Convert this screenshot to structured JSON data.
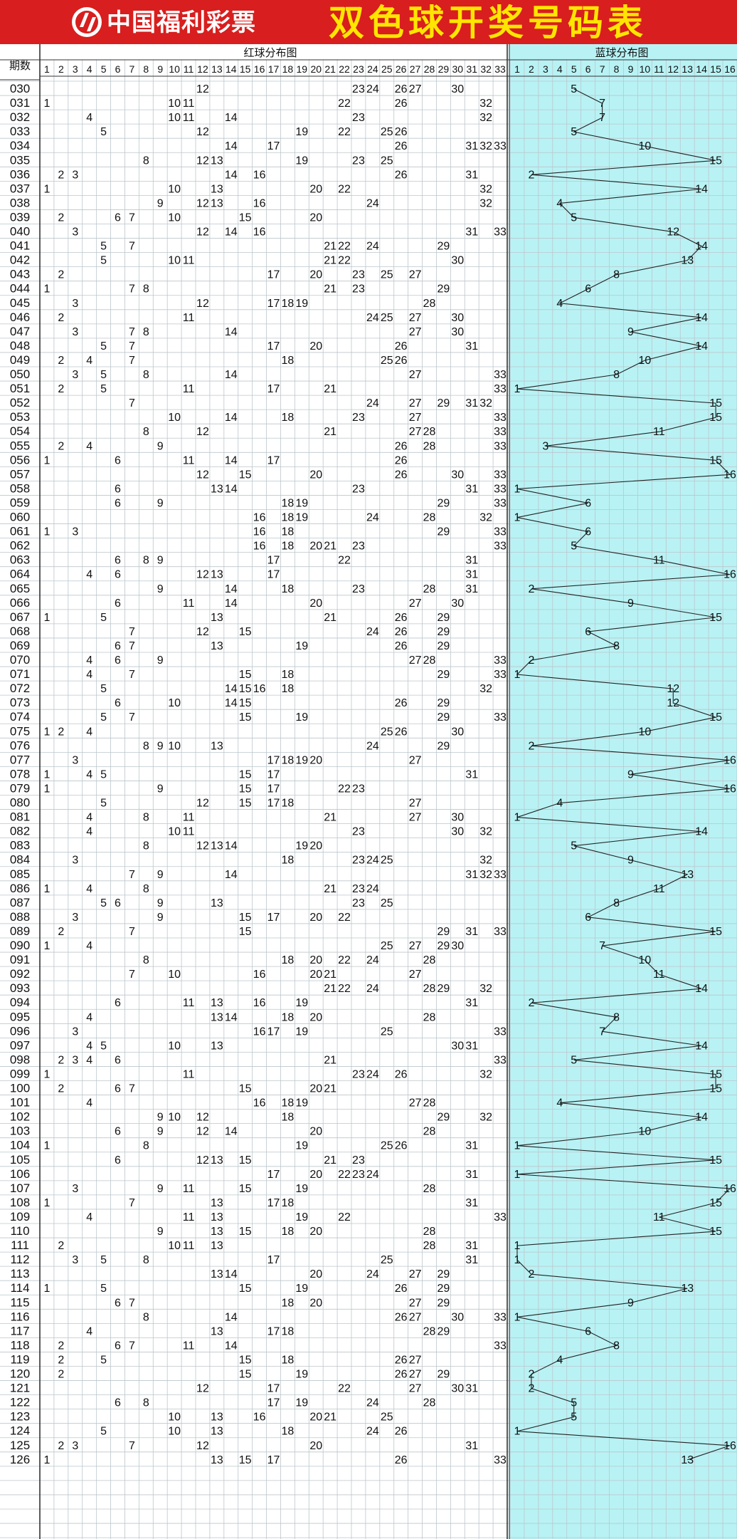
{
  "header": {
    "brand": "中国福利彩票",
    "title": "双色球开奖号码表",
    "logo_icon": "welfare-lottery-logo-icon"
  },
  "table": {
    "period_header": "期数",
    "red_section_title": "红球分布图",
    "blue_section_title": "蓝球分布图",
    "red_columns": [
      "1",
      "2",
      "3",
      "4",
      "5",
      "6",
      "7",
      "8",
      "9",
      "10",
      "11",
      "12",
      "13",
      "14",
      "15",
      "16",
      "17",
      "18",
      "19",
      "20",
      "21",
      "22",
      "23",
      "24",
      "25",
      "26",
      "27",
      "28",
      "29",
      "30",
      "31",
      "32",
      "33"
    ],
    "blue_columns": [
      "1",
      "2",
      "3",
      "4",
      "5",
      "6",
      "7",
      "8",
      "9",
      "10",
      "11",
      "12",
      "13",
      "14",
      "15",
      "16"
    ],
    "rows": [
      {
        "p": "030",
        "r": [
          12,
          23,
          24,
          26,
          27,
          30
        ],
        "b": 5
      },
      {
        "p": "031",
        "r": [
          1,
          10,
          11,
          22,
          26,
          32
        ],
        "b": 7
      },
      {
        "p": "032",
        "r": [
          4,
          10,
          11,
          14,
          23,
          32
        ],
        "b": 7
      },
      {
        "p": "033",
        "r": [
          5,
          12,
          19,
          22,
          25,
          26
        ],
        "b": 5
      },
      {
        "p": "034",
        "r": [
          14,
          17,
          26,
          31,
          32,
          33
        ],
        "b": 10
      },
      {
        "p": "035",
        "r": [
          8,
          12,
          13,
          19,
          23,
          25
        ],
        "b": 15
      },
      {
        "p": "036",
        "r": [
          2,
          3,
          14,
          16,
          26,
          31
        ],
        "b": 2
      },
      {
        "p": "037",
        "r": [
          1,
          10,
          13,
          20,
          22,
          32
        ],
        "b": 14
      },
      {
        "p": "038",
        "r": [
          9,
          12,
          13,
          16,
          24,
          32
        ],
        "b": 4
      },
      {
        "p": "039",
        "r": [
          2,
          6,
          7,
          10,
          15,
          20
        ],
        "b": 5
      },
      {
        "p": "040",
        "r": [
          3,
          12,
          14,
          16,
          31,
          33
        ],
        "b": 12
      },
      {
        "p": "041",
        "r": [
          5,
          7,
          21,
          22,
          24,
          29
        ],
        "b": 14
      },
      {
        "p": "042",
        "r": [
          5,
          10,
          11,
          21,
          22,
          30
        ],
        "b": 13
      },
      {
        "p": "043",
        "r": [
          2,
          17,
          20,
          23,
          25,
          27
        ],
        "b": 8
      },
      {
        "p": "044",
        "r": [
          1,
          7,
          8,
          21,
          23,
          29
        ],
        "b": 6
      },
      {
        "p": "045",
        "r": [
          3,
          12,
          17,
          18,
          19,
          28
        ],
        "b": 4
      },
      {
        "p": "046",
        "r": [
          2,
          11,
          24,
          25,
          27,
          30
        ],
        "b": 14
      },
      {
        "p": "047",
        "r": [
          3,
          7,
          8,
          14,
          27,
          30
        ],
        "b": 9
      },
      {
        "p": "048",
        "r": [
          5,
          7,
          17,
          20,
          26,
          31
        ],
        "b": 14
      },
      {
        "p": "049",
        "r": [
          2,
          4,
          7,
          18,
          25,
          26
        ],
        "b": 10
      },
      {
        "p": "050",
        "r": [
          3,
          5,
          8,
          14,
          27,
          33
        ],
        "b": 8
      },
      {
        "p": "051",
        "r": [
          2,
          5,
          11,
          17,
          21,
          33
        ],
        "b": 1
      },
      {
        "p": "052",
        "r": [
          7,
          24,
          27,
          29,
          31,
          32
        ],
        "b": 15
      },
      {
        "p": "053",
        "r": [
          10,
          14,
          18,
          23,
          27,
          33
        ],
        "b": 15
      },
      {
        "p": "054",
        "r": [
          8,
          12,
          21,
          27,
          28,
          33
        ],
        "b": 11
      },
      {
        "p": "055",
        "r": [
          2,
          4,
          9,
          26,
          28,
          33
        ],
        "b": 3
      },
      {
        "p": "056",
        "r": [
          1,
          6,
          11,
          14,
          17,
          26
        ],
        "b": 15
      },
      {
        "p": "057",
        "r": [
          12,
          15,
          20,
          26,
          30,
          33
        ],
        "b": 16
      },
      {
        "p": "058",
        "r": [
          6,
          13,
          14,
          23,
          31,
          33
        ],
        "b": 1
      },
      {
        "p": "059",
        "r": [
          6,
          9,
          18,
          19,
          29,
          33
        ],
        "b": 6
      },
      {
        "p": "060",
        "r": [
          16,
          18,
          19,
          24,
          28,
          32
        ],
        "b": 1
      },
      {
        "p": "061",
        "r": [
          1,
          3,
          16,
          18,
          29,
          33
        ],
        "b": 6
      },
      {
        "p": "062",
        "r": [
          16,
          18,
          20,
          21,
          23,
          33
        ],
        "b": 5
      },
      {
        "p": "063",
        "r": [
          6,
          8,
          9,
          17,
          22,
          31
        ],
        "b": 11
      },
      {
        "p": "064",
        "r": [
          4,
          6,
          12,
          13,
          17,
          31
        ],
        "b": 16
      },
      {
        "p": "065",
        "r": [
          9,
          14,
          18,
          23,
          28,
          31
        ],
        "b": 2
      },
      {
        "p": "066",
        "r": [
          6,
          11,
          14,
          20,
          27,
          30
        ],
        "b": 9
      },
      {
        "p": "067",
        "r": [
          1,
          5,
          13,
          21,
          26,
          29
        ],
        "b": 15
      },
      {
        "p": "068",
        "r": [
          7,
          12,
          15,
          24,
          26,
          29
        ],
        "b": 6
      },
      {
        "p": "069",
        "r": [
          6,
          7,
          13,
          19,
          26,
          29
        ],
        "b": 8
      },
      {
        "p": "070",
        "r": [
          4,
          6,
          9,
          27,
          28,
          33
        ],
        "b": 2
      },
      {
        "p": "071",
        "r": [
          4,
          7,
          15,
          18,
          29,
          33
        ],
        "b": 1
      },
      {
        "p": "072",
        "r": [
          5,
          14,
          15,
          16,
          18,
          32
        ],
        "b": 12
      },
      {
        "p": "073",
        "r": [
          6,
          10,
          14,
          15,
          26,
          29
        ],
        "b": 12
      },
      {
        "p": "074",
        "r": [
          5,
          7,
          15,
          19,
          29,
          33
        ],
        "b": 15
      },
      {
        "p": "075",
        "r": [
          1,
          2,
          4,
          25,
          26,
          30
        ],
        "b": 10
      },
      {
        "p": "076",
        "r": [
          8,
          9,
          10,
          13,
          24,
          29
        ],
        "b": 2
      },
      {
        "p": "077",
        "r": [
          3,
          17,
          18,
          19,
          20,
          27
        ],
        "b": 16
      },
      {
        "p": "078",
        "r": [
          1,
          4,
          5,
          15,
          17,
          31
        ],
        "b": 9
      },
      {
        "p": "079",
        "r": [
          1,
          9,
          15,
          17,
          22,
          23
        ],
        "b": 16
      },
      {
        "p": "080",
        "r": [
          5,
          12,
          15,
          17,
          18,
          27
        ],
        "b": 4
      },
      {
        "p": "081",
        "r": [
          4,
          8,
          11,
          21,
          27,
          30
        ],
        "b": 1
      },
      {
        "p": "082",
        "r": [
          4,
          10,
          11,
          23,
          30,
          32
        ],
        "b": 14
      },
      {
        "p": "083",
        "r": [
          8,
          12,
          13,
          14,
          19,
          20
        ],
        "b": 5
      },
      {
        "p": "084",
        "r": [
          3,
          18,
          23,
          24,
          25,
          32
        ],
        "b": 9
      },
      {
        "p": "085",
        "r": [
          7,
          9,
          14,
          31,
          32,
          33
        ],
        "b": 13
      },
      {
        "p": "086",
        "r": [
          1,
          4,
          8,
          21,
          23,
          24
        ],
        "b": 11
      },
      {
        "p": "087",
        "r": [
          5,
          6,
          9,
          13,
          23,
          25
        ],
        "b": 8
      },
      {
        "p": "088",
        "r": [
          3,
          9,
          15,
          17,
          20,
          22
        ],
        "b": 6
      },
      {
        "p": "089",
        "r": [
          2,
          7,
          15,
          29,
          31,
          33
        ],
        "b": 15
      },
      {
        "p": "090",
        "r": [
          1,
          4,
          25,
          27,
          29,
          30
        ],
        "b": 7
      },
      {
        "p": "091",
        "r": [
          8,
          18,
          20,
          22,
          24,
          28
        ],
        "b": 10
      },
      {
        "p": "092",
        "r": [
          7,
          10,
          16,
          20,
          21,
          27
        ],
        "b": 11
      },
      {
        "p": "093",
        "r": [
          21,
          22,
          24,
          28,
          29,
          32
        ],
        "b": 14
      },
      {
        "p": "094",
        "r": [
          6,
          11,
          13,
          16,
          19,
          31
        ],
        "b": 2
      },
      {
        "p": "095",
        "r": [
          4,
          13,
          14,
          18,
          20,
          28
        ],
        "b": 8
      },
      {
        "p": "096",
        "r": [
          3,
          16,
          17,
          19,
          25,
          33
        ],
        "b": 7
      },
      {
        "p": "097",
        "r": [
          4,
          5,
          10,
          13,
          30,
          31
        ],
        "b": 14
      },
      {
        "p": "098",
        "r": [
          2,
          3,
          4,
          6,
          21,
          33
        ],
        "b": 5
      },
      {
        "p": "099",
        "r": [
          1,
          11,
          23,
          24,
          26,
          32
        ],
        "b": 15
      },
      {
        "p": "100",
        "r": [
          2,
          6,
          7,
          15,
          20,
          21
        ],
        "b": 15
      },
      {
        "p": "101",
        "r": [
          4,
          16,
          18,
          19,
          27,
          28
        ],
        "b": 4
      },
      {
        "p": "102",
        "r": [
          9,
          10,
          12,
          18,
          29,
          32
        ],
        "b": 14
      },
      {
        "p": "103",
        "r": [
          6,
          9,
          12,
          14,
          20,
          28
        ],
        "b": 10
      },
      {
        "p": "104",
        "r": [
          1,
          8,
          19,
          25,
          26,
          31
        ],
        "b": 1
      },
      {
        "p": "105",
        "r": [
          6,
          12,
          13,
          15,
          21,
          23
        ],
        "b": 15
      },
      {
        "p": "106",
        "r": [
          17,
          20,
          22,
          23,
          24,
          31
        ],
        "b": 1
      },
      {
        "p": "107",
        "r": [
          3,
          9,
          11,
          15,
          19,
          28
        ],
        "b": 16
      },
      {
        "p": "108",
        "r": [
          1,
          7,
          13,
          17,
          18,
          31
        ],
        "b": 15
      },
      {
        "p": "109",
        "r": [
          4,
          11,
          13,
          19,
          22,
          33
        ],
        "b": 11
      },
      {
        "p": "110",
        "r": [
          9,
          13,
          15,
          18,
          20,
          28
        ],
        "b": 15
      },
      {
        "p": "111",
        "r": [
          2,
          10,
          11,
          13,
          28,
          31
        ],
        "b": 1
      },
      {
        "p": "112",
        "r": [
          3,
          5,
          8,
          17,
          25,
          31
        ],
        "b": 1
      },
      {
        "p": "113",
        "r": [
          13,
          14,
          20,
          24,
          27,
          29
        ],
        "b": 2
      },
      {
        "p": "114",
        "r": [
          1,
          5,
          15,
          19,
          26,
          29
        ],
        "b": 13
      },
      {
        "p": "115",
        "r": [
          6,
          7,
          18,
          20,
          27,
          29
        ],
        "b": 9
      },
      {
        "p": "116",
        "r": [
          8,
          14,
          26,
          27,
          30,
          33
        ],
        "b": 1
      },
      {
        "p": "117",
        "r": [
          4,
          13,
          17,
          18,
          28,
          29
        ],
        "b": 6
      },
      {
        "p": "118",
        "r": [
          2,
          6,
          7,
          11,
          14,
          33
        ],
        "b": 8
      },
      {
        "p": "119",
        "r": [
          2,
          5,
          15,
          18,
          26,
          27
        ],
        "b": 4
      },
      {
        "p": "120",
        "r": [
          2,
          15,
          19,
          26,
          27,
          29
        ],
        "b": 2
      },
      {
        "p": "121",
        "r": [
          12,
          17,
          22,
          27,
          30,
          31
        ],
        "b": 2
      },
      {
        "p": "122",
        "r": [
          6,
          8,
          17,
          19,
          24,
          28
        ],
        "b": 5
      },
      {
        "p": "123",
        "r": [
          10,
          13,
          16,
          20,
          21,
          25
        ],
        "b": 5
      },
      {
        "p": "124",
        "r": [
          5,
          10,
          13,
          18,
          24,
          26
        ],
        "b": 1
      },
      {
        "p": "125",
        "r": [
          2,
          3,
          7,
          12,
          20,
          31
        ],
        "b": 16
      },
      {
        "p": "126",
        "r": [
          1,
          13,
          15,
          17,
          26,
          33
        ],
        "b": 13
      }
    ]
  },
  "colors": {
    "header_bg": "#d81e1e",
    "brand_text": "#ffffff",
    "title_text": "#ffe600",
    "blue_panel_bg": "#b8f2f4",
    "grid_line": "#bcc6cc",
    "divider": "#333333"
  }
}
